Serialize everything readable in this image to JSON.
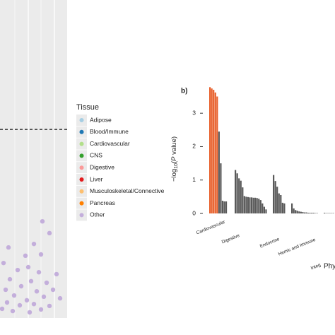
{
  "chart_data": [
    {
      "type": "scatter",
      "xlim": [
        0,
        95
      ],
      "ylim": [
        0,
        100
      ],
      "xgrid": [
        40,
        77
      ],
      "xgrid_minor": [
        21,
        58,
        96
      ],
      "hline": 59.3,
      "color": "#c3aedb",
      "x": [
        60,
        70,
        48,
        12,
        58,
        36,
        5,
        40,
        25,
        55,
        80,
        14,
        44,
        66,
        30,
        8,
        52,
        75,
        20,
        62,
        38,
        85,
        10,
        48,
        28,
        70,
        58,
        18,
        42,
        3
      ],
      "y": [
        30.4,
        26.7,
        23.3,
        22.2,
        20,
        19.6,
        17.3,
        16,
        15.1,
        14.4,
        13.8,
        12.2,
        11.6,
        11.1,
        10,
        8.9,
        8.4,
        8.9,
        7.1,
        6.7,
        5.6,
        6.2,
        4.9,
        4.4,
        4,
        3.8,
        2.7,
        2.2,
        1.8,
        2.9
      ],
      "legend": {
        "title": "Tissue",
        "entries": [
          {
            "name": "Adipose",
            "color": "#a6cee3"
          },
          {
            "name": "Blood/Immune",
            "color": "#1f78b4"
          },
          {
            "name": "Cardiovascular",
            "color": "#b2df8a"
          },
          {
            "name": "CNS",
            "color": "#33a02c"
          },
          {
            "name": "Digestive",
            "color": "#fb9a99"
          },
          {
            "name": "Liver",
            "color": "#e31a1c"
          },
          {
            "name": "Musculoskeletal/Connective",
            "color": "#fdbf6f"
          },
          {
            "name": "Pancreas",
            "color": "#ff7f00"
          },
          {
            "name": "Other",
            "color": "#c3aedb"
          }
        ]
      }
    },
    {
      "type": "bar",
      "panel_label": "b)",
      "ylabel": {
        "lead": "−log",
        "sub": "10",
        "open": "(",
        "p": "P",
        "rest": " value)"
      },
      "xlabel": "Phy",
      "ylim": [
        0,
        3.85
      ],
      "yticks": [
        0,
        1,
        2,
        3
      ],
      "series": [
        {
          "name": "Cardiovascular",
          "values": [
            3.78,
            3.74,
            3.7,
            3.62,
            3.5,
            2.45,
            1.5,
            0.38,
            0.36,
            0.36
          ],
          "colors": [
            "#e8602c",
            "#e8602c",
            "#e8602c",
            "#e8602c",
            "#e8602c",
            "#595959",
            "#595959",
            "#595959",
            "#595959",
            "#595959"
          ]
        },
        {
          "name": "Digestive",
          "values": [
            1.3,
            1.2,
            1.05,
            0.98,
            0.78,
            0.52,
            0.5,
            0.49,
            0.48,
            0.48,
            0.47,
            0.47,
            0.46,
            0.44,
            0.4,
            0.3,
            0.2,
            0.12
          ],
          "color": "#595959"
        },
        {
          "name": "Endocrine",
          "values": [
            1.15,
            0.97,
            0.8,
            0.6,
            0.55,
            0.32,
            0.3
          ],
          "color": "#595959"
        },
        {
          "name": "Hemic and Immune",
          "values": [
            0.3,
            0.15,
            0.1,
            0.08,
            0.06,
            0.05,
            0.04,
            0.03,
            0.03,
            0.02,
            0.02,
            0.02,
            0.02,
            0.01,
            0.01
          ],
          "color": "#595959"
        },
        {
          "name": "Integ",
          "values": [
            0.02,
            0.01,
            0.01,
            0.01,
            0.01,
            0.01
          ],
          "color": "#595959"
        }
      ]
    }
  ]
}
